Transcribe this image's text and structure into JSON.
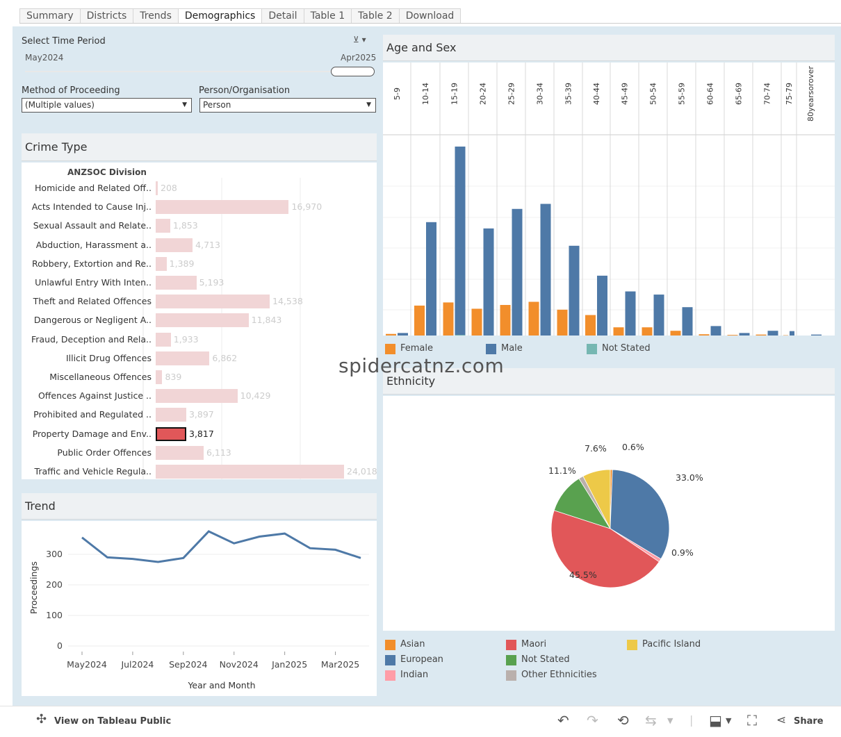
{
  "tabs": [
    "Summary",
    "Districts",
    "Trends",
    "Demographics",
    "Detail",
    "Table 1",
    "Table 2",
    "Download"
  ],
  "active_tab": "Demographics",
  "filters": {
    "time_period_label": "Select Time Period",
    "start": "May2024",
    "end": "Apr2025",
    "method_label": "Method of Proceeding",
    "method_value": "(Multiple values)",
    "person_label": "Person/Organisation",
    "person_value": "Person"
  },
  "crime": {
    "title": "Crime Type",
    "header": "ANZSOC Division",
    "categories": [
      "Homicide and Related Off..",
      "Acts Intended to Cause Inj..",
      "Sexual Assault and Relate..",
      "Abduction, Harassment a..",
      "Robbery, Extortion and Re..",
      "Unlawful Entry With Inten..",
      "Theft and Related Offences",
      "Dangerous or Negligent A..",
      "Fraud, Deception and Rela..",
      "Illicit Drug Offences",
      "Miscellaneous Offences",
      "Offences Against Justice ..",
      "Prohibited and Regulated ..",
      "Property Damage and Env..",
      "Public Order Offences",
      "Traffic and Vehicle Regula.."
    ],
    "values": [
      208,
      16970,
      1853,
      4713,
      1389,
      5193,
      14538,
      11843,
      1933,
      6862,
      839,
      10429,
      3897,
      3817,
      6113,
      24018
    ],
    "labels": [
      "208",
      "16,970",
      "1,853",
      "4,713",
      "1,389",
      "5,193",
      "14,538",
      "11,843",
      "1,933",
      "6,862",
      "839",
      "10,429",
      "3,897",
      "3,817",
      "6,113",
      "24,018"
    ],
    "highlight_index": 13
  },
  "trend": {
    "title": "Trend",
    "ylabel": "Proceedings",
    "xlabel": "Year and Month",
    "yticks": [
      "300",
      "200",
      "100",
      "0"
    ],
    "xticks": [
      "May2024",
      "Jul2024",
      "Sep2024",
      "Nov2024",
      "Jan2025",
      "Mar2025"
    ]
  },
  "age_sex": {
    "title": "Age and Sex",
    "groups": [
      "5-9",
      "10-14",
      "15-19",
      "20-24",
      "25-29",
      "30-34",
      "35-39",
      "40-44",
      "45-49",
      "50-54",
      "55-59",
      "60-64",
      "65-69",
      "70-74",
      "75-79",
      "80yearsorover"
    ],
    "legend": [
      {
        "label": "Female",
        "color": "#f28e2b"
      },
      {
        "label": "Male",
        "color": "#4e79a7"
      },
      {
        "label": "Not Stated",
        "color": "#76b7b2"
      }
    ]
  },
  "ethnicity": {
    "title": "Ethnicity",
    "slice_labels": [
      "0.6%",
      "33.0%",
      "0.9%",
      "45.5%",
      "11.1%",
      "7.6%"
    ],
    "legend": [
      {
        "label": "Asian",
        "color": "#f28e2b"
      },
      {
        "label": "Maori",
        "color": "#e15759"
      },
      {
        "label": "Pacific Island",
        "color": "#edc948"
      },
      {
        "label": "European",
        "color": "#4e79a7"
      },
      {
        "label": "Not Stated",
        "color": "#59a14f"
      },
      {
        "label": "Indian",
        "color": "#ff9da7"
      },
      {
        "label": "Other Ethnicities",
        "color": "#bab0ac"
      }
    ]
  },
  "watermark": "spidercatnz.com",
  "footer": {
    "view_label": "View on Tableau Public",
    "share_label": "Share"
  },
  "chart_data": [
    {
      "type": "bar",
      "title": "Crime Type",
      "categories": [
        "Homicide and Related Off..",
        "Acts Intended to Cause Inj..",
        "Sexual Assault and Relate..",
        "Abduction, Harassment a..",
        "Robbery, Extortion and Re..",
        "Unlawful Entry With Inten..",
        "Theft and Related Offences",
        "Dangerous or Negligent A..",
        "Fraud, Deception and Rela..",
        "Illicit Drug Offences",
        "Miscellaneous Offences",
        "Offences Against Justice ..",
        "Prohibited and Regulated ..",
        "Property Damage and Env..",
        "Public Order Offences",
        "Traffic and Vehicle Regula.."
      ],
      "values": [
        208,
        16970,
        1853,
        4713,
        1389,
        5193,
        14538,
        11843,
        1933,
        6862,
        839,
        10429,
        3897,
        3817,
        6113,
        24018
      ]
    },
    {
      "type": "line",
      "title": "Trend",
      "xlabel": "Year and Month",
      "ylabel": "Proceedings",
      "x": [
        "May2024",
        "Jun2024",
        "Jul2024",
        "Aug2024",
        "Sep2024",
        "Oct2024",
        "Nov2024",
        "Dec2024",
        "Jan2025",
        "Feb2025",
        "Mar2025",
        "Apr2025"
      ],
      "series": [
        {
          "values": [
            355,
            290,
            285,
            275,
            288,
            375,
            336,
            358,
            368,
            320,
            315,
            288
          ]
        }
      ],
      "ylim": [
        0,
        400
      ]
    },
    {
      "type": "bar",
      "title": "Age and Sex",
      "categories": [
        "5-9",
        "10-14",
        "15-19",
        "20-24",
        "25-29",
        "30-34",
        "35-39",
        "40-44",
        "45-49",
        "50-54",
        "55-59",
        "60-64",
        "65-69",
        "70-74",
        "75-79",
        "80yearsorover"
      ],
      "series": [
        {
          "name": "Female",
          "values": [
            5,
            95,
            105,
            85,
            97,
            107,
            82,
            65,
            26,
            26,
            15,
            4,
            2,
            3,
            1,
            0
          ]
        },
        {
          "name": "Male",
          "values": [
            8,
            360,
            600,
            340,
            402,
            418,
            285,
            190,
            140,
            130,
            90,
            30,
            8,
            15,
            14,
            3
          ]
        },
        {
          "name": "Not Stated",
          "values": [
            0,
            0,
            2,
            0,
            0,
            0,
            0,
            0,
            0,
            0,
            0,
            0,
            0,
            0,
            0,
            0
          ]
        }
      ]
    },
    {
      "type": "pie",
      "title": "Ethnicity",
      "labels": [
        "Asian",
        "European",
        "Indian",
        "Maori",
        "Not Stated",
        "Other Ethnicities",
        "Pacific Island"
      ],
      "values": [
        0.6,
        33.0,
        0.9,
        45.5,
        11.1,
        1.3,
        7.6
      ]
    }
  ]
}
